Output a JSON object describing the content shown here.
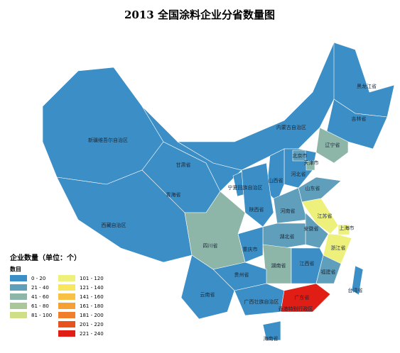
{
  "title": "2013 全国涂料企业分省数量图",
  "legend": {
    "title": "企业数量（单位：个）",
    "subtitle": "数目",
    "items": [
      {
        "label": "0 - 20",
        "color": "#3b8ec6"
      },
      {
        "label": "21 - 40",
        "color": "#5f9fbc"
      },
      {
        "label": "41 - 60",
        "color": "#8db5a8"
      },
      {
        "label": "61 - 80",
        "color": "#a9c798"
      },
      {
        "label": "81 - 100",
        "color": "#cfdf88"
      },
      {
        "label": "101 - 120",
        "color": "#eef07c"
      },
      {
        "label": "121 - 140",
        "color": "#f8e65e"
      },
      {
        "label": "141 - 160",
        "color": "#f8c044"
      },
      {
        "label": "161 - 180",
        "color": "#f6a034"
      },
      {
        "label": "181 - 200",
        "color": "#f07e2a"
      },
      {
        "label": "201 - 220",
        "color": "#e8521f"
      },
      {
        "label": "221 - 240",
        "color": "#e01e16"
      }
    ]
  },
  "provinces": [
    {
      "name": "新疆维吾尔自治区",
      "color": "#3b8ec6"
    },
    {
      "name": "西藏自治区",
      "color": "#3b8ec6"
    },
    {
      "name": "青海省",
      "color": "#3b8ec6"
    },
    {
      "name": "甘肃省",
      "color": "#3b8ec6"
    },
    {
      "name": "内蒙古自治区",
      "color": "#3b8ec6"
    },
    {
      "name": "黑龙江省",
      "color": "#3b8ec6"
    },
    {
      "name": "吉林省",
      "color": "#3b8ec6"
    },
    {
      "name": "辽宁省",
      "color": "#8db5a8"
    },
    {
      "name": "河北省",
      "color": "#3b8ec6"
    },
    {
      "name": "北京市",
      "color": "#5f9fbc"
    },
    {
      "name": "天津市",
      "color": "#8db5a8"
    },
    {
      "name": "山西省",
      "color": "#3b8ec6"
    },
    {
      "name": "宁夏回族自治区",
      "color": "#3b8ec6"
    },
    {
      "name": "陕西省",
      "color": "#3b8ec6"
    },
    {
      "name": "山东省",
      "color": "#5f9fbc"
    },
    {
      "name": "河南省",
      "color": "#5f9fbc"
    },
    {
      "name": "江苏省",
      "color": "#eef07c"
    },
    {
      "name": "上海市",
      "color": "#eef07c"
    },
    {
      "name": "安徽省",
      "color": "#5f9fbc"
    },
    {
      "name": "浙江省",
      "color": "#eef07c"
    },
    {
      "name": "湖北省",
      "color": "#5f9fbc"
    },
    {
      "name": "重庆市",
      "color": "#3b8ec6"
    },
    {
      "name": "四川省",
      "color": "#8db5a8"
    },
    {
      "name": "湖南省",
      "color": "#8db5a8"
    },
    {
      "name": "江西省",
      "color": "#3b8ec6"
    },
    {
      "name": "福建省",
      "color": "#5f9fbc"
    },
    {
      "name": "贵州省",
      "color": "#3b8ec6"
    },
    {
      "name": "云南省",
      "color": "#3b8ec6"
    },
    {
      "name": "广西壮族自治区",
      "color": "#3b8ec6"
    },
    {
      "name": "广东省",
      "color": "#e01e16"
    },
    {
      "name": "海南省",
      "color": "#3b8ec6"
    },
    {
      "name": "台湾省",
      "color": "#3b8ec6"
    },
    {
      "name": "香港特别行政区",
      "color": "#e01e16"
    }
  ]
}
